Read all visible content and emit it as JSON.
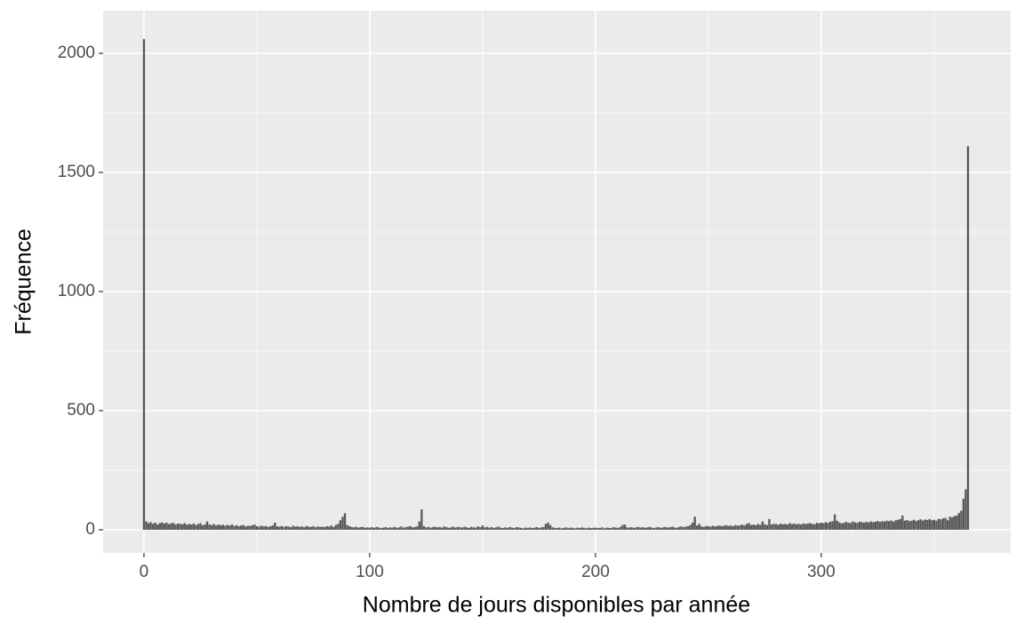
{
  "chart_data": {
    "type": "bar",
    "x_label": "Nombre de jours disponibles par année",
    "y_label": "Fréquence",
    "color": "#595959",
    "grid": true,
    "xlim": [
      -18.1,
      383.9
    ],
    "ylim": [
      -97,
      2179
    ],
    "xticks": [
      0,
      100,
      200,
      300
    ],
    "yticks": [
      0,
      500,
      1000,
      1500,
      2000
    ],
    "x_minor_ticks": [
      50,
      150,
      250,
      350
    ],
    "y_minor_ticks": [
      250,
      750,
      1250,
      1750
    ],
    "x": [
      0,
      1,
      2,
      3,
      4,
      5,
      6,
      7,
      8,
      9,
      10,
      11,
      12,
      13,
      14,
      15,
      16,
      17,
      18,
      19,
      20,
      21,
      22,
      23,
      24,
      25,
      26,
      27,
      28,
      29,
      30,
      31,
      32,
      33,
      34,
      35,
      36,
      37,
      38,
      39,
      40,
      41,
      42,
      43,
      44,
      45,
      46,
      47,
      48,
      49,
      50,
      51,
      52,
      53,
      54,
      55,
      56,
      57,
      58,
      59,
      60,
      61,
      62,
      63,
      64,
      65,
      66,
      67,
      68,
      69,
      70,
      71,
      72,
      73,
      74,
      75,
      76,
      77,
      78,
      79,
      80,
      81,
      82,
      83,
      84,
      85,
      86,
      87,
      88,
      89,
      90,
      91,
      92,
      93,
      94,
      95,
      96,
      97,
      98,
      99,
      100,
      101,
      102,
      103,
      104,
      105,
      106,
      107,
      108,
      109,
      110,
      111,
      112,
      113,
      114,
      115,
      116,
      117,
      118,
      119,
      120,
      121,
      122,
      123,
      124,
      125,
      126,
      127,
      128,
      129,
      130,
      131,
      132,
      133,
      134,
      135,
      136,
      137,
      138,
      139,
      140,
      141,
      142,
      143,
      144,
      145,
      146,
      147,
      148,
      149,
      150,
      151,
      152,
      153,
      154,
      155,
      156,
      157,
      158,
      159,
      160,
      161,
      162,
      163,
      164,
      165,
      166,
      167,
      168,
      169,
      170,
      171,
      172,
      173,
      174,
      175,
      176,
      177,
      178,
      179,
      180,
      181,
      182,
      183,
      184,
      185,
      186,
      187,
      188,
      189,
      190,
      191,
      192,
      193,
      194,
      195,
      196,
      197,
      198,
      199,
      200,
      201,
      202,
      203,
      204,
      205,
      206,
      207,
      208,
      209,
      210,
      211,
      212,
      213,
      214,
      215,
      216,
      217,
      218,
      219,
      220,
      221,
      222,
      223,
      224,
      225,
      226,
      227,
      228,
      229,
      230,
      231,
      232,
      233,
      234,
      235,
      236,
      237,
      238,
      239,
      240,
      241,
      242,
      243,
      244,
      245,
      246,
      247,
      248,
      249,
      250,
      251,
      252,
      253,
      254,
      255,
      256,
      257,
      258,
      259,
      260,
      261,
      262,
      263,
      264,
      265,
      266,
      267,
      268,
      269,
      270,
      271,
      272,
      273,
      274,
      275,
      276,
      277,
      278,
      279,
      280,
      281,
      282,
      283,
      284,
      285,
      286,
      287,
      288,
      289,
      290,
      291,
      292,
      293,
      294,
      295,
      296,
      297,
      298,
      299,
      300,
      301,
      302,
      303,
      304,
      305,
      306,
      307,
      308,
      309,
      310,
      311,
      312,
      313,
      314,
      315,
      316,
      317,
      318,
      319,
      320,
      321,
      322,
      323,
      324,
      325,
      326,
      327,
      328,
      329,
      330,
      331,
      332,
      333,
      334,
      335,
      336,
      337,
      338,
      339,
      340,
      341,
      342,
      343,
      344,
      345,
      346,
      347,
      348,
      349,
      350,
      351,
      352,
      353,
      354,
      355,
      356,
      357,
      358,
      359,
      360,
      361,
      362,
      363,
      364,
      365
    ],
    "values": [
      2060,
      35,
      28,
      32,
      25,
      30,
      22,
      28,
      31,
      26,
      30,
      24,
      27,
      29,
      22,
      26,
      25,
      23,
      28,
      21,
      25,
      22,
      26,
      20,
      24,
      28,
      19,
      23,
      35,
      22,
      20,
      24,
      18,
      22,
      19,
      21,
      17,
      20,
      18,
      22,
      16,
      19,
      15,
      18,
      20,
      14,
      17,
      16,
      19,
      22,
      15,
      13,
      17,
      14,
      16,
      12,
      15,
      18,
      30,
      14,
      13,
      16,
      12,
      15,
      14,
      11,
      17,
      13,
      15,
      12,
      14,
      11,
      16,
      13,
      12,
      15,
      10,
      14,
      12,
      13,
      11,
      15,
      13,
      18,
      12,
      20,
      25,
      40,
      55,
      70,
      20,
      15,
      12,
      10,
      13,
      9,
      11,
      12,
      8,
      10,
      9,
      11,
      8,
      12,
      10,
      7,
      9,
      11,
      8,
      10,
      9,
      12,
      8,
      10,
      14,
      9,
      11,
      13,
      15,
      10,
      12,
      14,
      35,
      85,
      15,
      10,
      12,
      9,
      11,
      13,
      10,
      12,
      9,
      14,
      11,
      8,
      10,
      13,
      9,
      12,
      11,
      9,
      13,
      10,
      8,
      12,
      10,
      9,
      14,
      11,
      18,
      10,
      12,
      9,
      11,
      8,
      10,
      13,
      9,
      7,
      10,
      8,
      12,
      9,
      7,
      11,
      10,
      8,
      6,
      9,
      8,
      10,
      7,
      9,
      11,
      8,
      10,
      12,
      25,
      30,
      20,
      10,
      8,
      7,
      9,
      6,
      8,
      10,
      7,
      9,
      8,
      6,
      9,
      7,
      10,
      8,
      6,
      9,
      7,
      8,
      9,
      7,
      8,
      10,
      6,
      9,
      8,
      7,
      11,
      9,
      8,
      12,
      20,
      22,
      10,
      9,
      11,
      8,
      10,
      12,
      9,
      11,
      8,
      10,
      12,
      9,
      7,
      10,
      11,
      8,
      10,
      12,
      9,
      11,
      13,
      10,
      8,
      12,
      14,
      11,
      13,
      15,
      20,
      30,
      55,
      18,
      25,
      14,
      12,
      16,
      15,
      13,
      17,
      14,
      16,
      18,
      15,
      17,
      19,
      16,
      18,
      15,
      20,
      17,
      19,
      22,
      18,
      25,
      28,
      20,
      22,
      19,
      24,
      21,
      35,
      23,
      20,
      45,
      22,
      25,
      24,
      21,
      26,
      23,
      25,
      22,
      28,
      24,
      26,
      23,
      25,
      22,
      27,
      24,
      26,
      28,
      25,
      23,
      29,
      27,
      30,
      28,
      32,
      29,
      34,
      36,
      65,
      38,
      31,
      27,
      29,
      33,
      30,
      28,
      35,
      31,
      29,
      34,
      32,
      30,
      33,
      31,
      35,
      32,
      34,
      37,
      33,
      36,
      35,
      38,
      36,
      39,
      34,
      40,
      42,
      45,
      60,
      38,
      41,
      36,
      38,
      42,
      37,
      40,
      44,
      39,
      43,
      41,
      45,
      40,
      42,
      38,
      46,
      44,
      48,
      50,
      40,
      55,
      52,
      58,
      60,
      70,
      80,
      130,
      170,
      1610
    ]
  }
}
